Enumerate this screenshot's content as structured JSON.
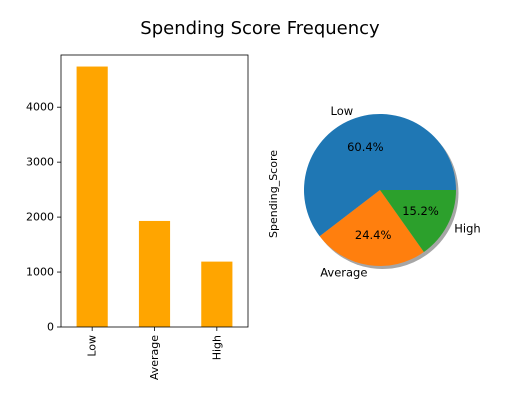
{
  "chart_data": [
    {
      "type": "bar",
      "title": "Spending Score Frequency",
      "categories": [
        "Low",
        "Average",
        "High"
      ],
      "values": [
        4740,
        1930,
        1190
      ],
      "ylim": [
        0,
        4950
      ],
      "yticks": [
        0,
        1000,
        2000,
        3000,
        4000
      ],
      "color": "#ffa500",
      "grid": false
    },
    {
      "type": "pie",
      "ylabel": "Spending_Score",
      "labels": [
        "Low",
        "Average",
        "High"
      ],
      "values": [
        60.4,
        24.4,
        15.2
      ],
      "value_labels": [
        "60.4%",
        "24.4%",
        "15.2%"
      ],
      "colors": [
        "#1f77b4",
        "#ff7f0e",
        "#2ca02c"
      ],
      "shadow": true
    }
  ]
}
